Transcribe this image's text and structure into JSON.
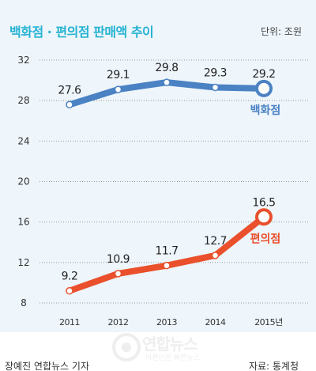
{
  "header": {
    "title": "백화점 · 편의점 판매액 추이",
    "unit": "단위: 조원"
  },
  "footer": {
    "reporter": "장예진 연합뉴스 기자",
    "source": "자료: 통계청"
  },
  "watermark": {
    "text": "연합뉴스",
    "sub": "바른언론 빠른뉴스"
  },
  "colors": {
    "background": "#eef5fb",
    "title": "#25b3d2",
    "department_store": "#4a82c3",
    "convenience_store": "#e9502b",
    "gridline": "#9a9a9a"
  },
  "chart_data": {
    "type": "line",
    "title": "백화점 · 편의점 판매액 추이",
    "unit": "단위: 조원",
    "xlabel": "",
    "ylabel": "",
    "categories": [
      "2011",
      "2012",
      "2013",
      "2014",
      "2015년"
    ],
    "yticks": [
      8,
      12,
      16,
      20,
      24,
      28,
      32
    ],
    "ylim": [
      8,
      32
    ],
    "grid": "horizontal",
    "series": [
      {
        "name": "백화점",
        "color": "#4a82c3",
        "values": [
          27.6,
          29.1,
          29.8,
          29.3,
          29.2
        ],
        "labels": [
          "27.6",
          "29.1",
          "29.8",
          "29.3",
          "29.2"
        ]
      },
      {
        "name": "편의점",
        "color": "#e9502b",
        "values": [
          9.2,
          10.9,
          11.7,
          12.7,
          16.5
        ],
        "labels": [
          "9.2",
          "10.9",
          "11.7",
          "12.7",
          "16.5"
        ]
      }
    ]
  }
}
